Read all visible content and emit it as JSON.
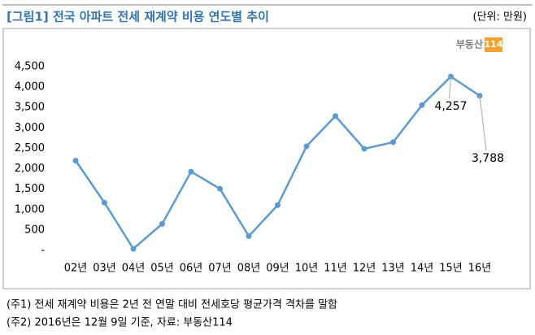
{
  "header": {
    "title": "[그림1] 전국 아파트 전세 재계약 비용 연도별 추이",
    "unit": "(단위: 만원)",
    "logo": "부동산",
    "logo_number": "114"
  },
  "chart_data": {
    "type": "line",
    "categories": [
      "02년",
      "03년",
      "04년",
      "05년",
      "06년",
      "07년",
      "08년",
      "09년",
      "10년",
      "11년",
      "12년",
      "13년",
      "14년",
      "15년",
      "16년"
    ],
    "series": [
      {
        "color": "#5b9bd5",
        "values": [
          2200,
          1170,
          40,
          650,
          1930,
          1510,
          350,
          1110,
          2550,
          3290,
          2490,
          2650,
          3560,
          4257,
          3788
        ],
        "value_labels": [
          null,
          null,
          null,
          null,
          null,
          null,
          null,
          null,
          null,
          null,
          null,
          null,
          null,
          "4,257",
          "3,788"
        ]
      }
    ],
    "ylim": [
      0,
      4500
    ],
    "yticks": [
      {
        "value": 0,
        "label": "-"
      },
      500,
      {
        "value": 1000,
        "label": "1,000"
      },
      {
        "value": 1500,
        "label": "1,500"
      },
      {
        "value": 2000,
        "label": "2,000"
      },
      {
        "value": 2500,
        "label": "2,500"
      },
      {
        "value": 3000,
        "label": "3,000"
      },
      {
        "value": 3500,
        "label": "3,500"
      },
      {
        "value": 4000,
        "label": "4,000"
      },
      {
        "value": 4500,
        "label": "4,500"
      }
    ],
    "grid": false
  },
  "notes": [
    "(주1) 전세 재계약 비용은 2년 전 연말 대비 전세호당 평균가격 격차를 말함",
    "(주2) 2016년은 12월 9일 기준, 자료: 부동산114"
  ]
}
